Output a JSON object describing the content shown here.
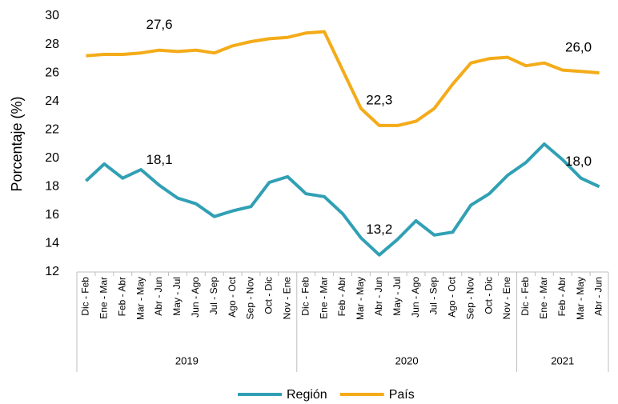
{
  "chart_data": {
    "type": "line",
    "y_label": "Porcentaje (%)",
    "category_groups": [
      {
        "name": "2019",
        "categories": [
          "Dic - Feb",
          "Ene - Mar",
          "Feb - Abr",
          "Mar - May",
          "Abr - Jun",
          "May - Jul",
          "Jun - Ago",
          "Jul - Sep",
          "Ago - Oct",
          "Sep - Nov",
          "Oct - Dic",
          "Nov - Ene"
        ]
      },
      {
        "name": "2020",
        "categories": [
          "Dic - Feb",
          "Ene - Mar",
          "Feb - Abr",
          "Mar - May",
          "Abr - Jun",
          "May - Jul",
          "Jun - Ago",
          "Jul - Sep",
          "Ago - Oct",
          "Sep - Nov",
          "Oct - Dic",
          "Nov - Ene"
        ]
      },
      {
        "name": "2021",
        "categories": [
          "Dic - Feb",
          "Ene - Mar",
          "Feb - Abr",
          "Mar - May",
          "Abr - Jun"
        ]
      }
    ],
    "series": [
      {
        "name": "Región",
        "color": "#31a0b4",
        "values": [
          18.4,
          19.6,
          18.6,
          19.2,
          18.1,
          17.2,
          16.8,
          15.9,
          16.3,
          16.6,
          18.3,
          18.7,
          17.5,
          17.3,
          16.1,
          14.4,
          13.2,
          14.3,
          15.6,
          14.6,
          14.8,
          16.7,
          17.5,
          18.8,
          19.7,
          21.0,
          19.9,
          18.6,
          18.0
        ],
        "value_labels": [
          null,
          null,
          null,
          null,
          "18,1",
          null,
          null,
          null,
          null,
          null,
          null,
          null,
          null,
          null,
          null,
          null,
          "13,2",
          null,
          null,
          null,
          null,
          null,
          null,
          null,
          null,
          null,
          null,
          null,
          "18,0"
        ]
      },
      {
        "name": "País",
        "color": "#f4ab19",
        "values": [
          27.2,
          27.3,
          27.3,
          27.4,
          27.6,
          27.5,
          27.6,
          27.4,
          27.9,
          28.2,
          28.4,
          28.5,
          28.8,
          28.9,
          26.2,
          23.5,
          22.3,
          22.3,
          22.6,
          23.5,
          25.2,
          26.7,
          27.0,
          27.1,
          26.5,
          26.7,
          26.2,
          26.1,
          26.0
        ],
        "value_labels": [
          null,
          null,
          null,
          null,
          "27,6",
          null,
          null,
          null,
          null,
          null,
          null,
          null,
          null,
          null,
          null,
          null,
          "22,3",
          null,
          null,
          null,
          null,
          null,
          null,
          null,
          null,
          null,
          null,
          null,
          "26,0"
        ]
      }
    ],
    "ylim": [
      12,
      30
    ],
    "yticks": [
      12,
      14,
      16,
      18,
      20,
      22,
      24,
      26,
      28,
      30
    ],
    "grid": false,
    "legend": "bottom"
  }
}
